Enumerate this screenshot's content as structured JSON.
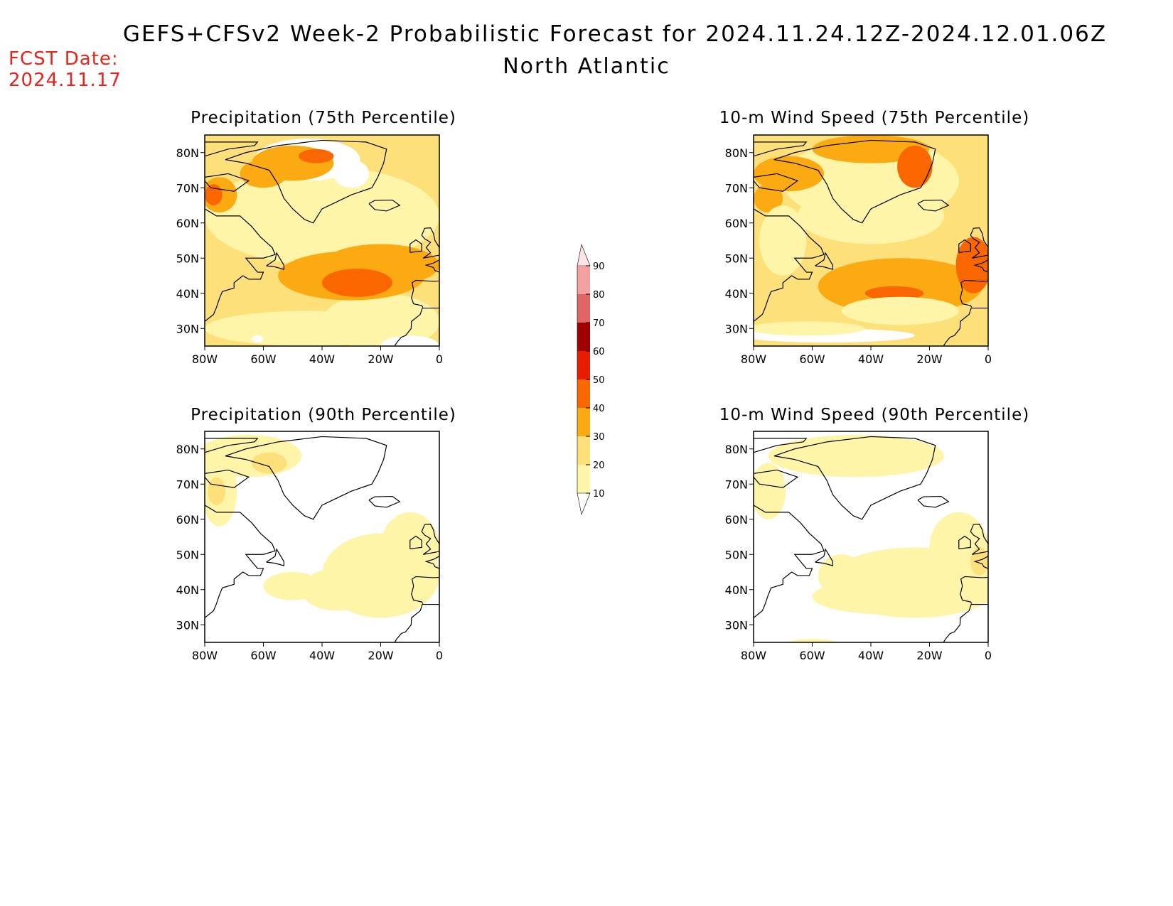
{
  "header": {
    "title": "GEFS+CFSv2 Week-2 Probabilistic Forecast for 2024.11.24.12Z-2024.12.01.06Z",
    "region": "North Atlantic",
    "fcst_label": "FCST Date:",
    "fcst_date": "2024.11.17"
  },
  "colors": {
    "bins": [
      "#ffffff",
      "#fef5a8",
      "#fde07a",
      "#fcaa11",
      "#fa6600",
      "#e81c00",
      "#a00000",
      "#e06666",
      "#f3a0a0",
      "#fde4e4"
    ],
    "coast": "#000000"
  },
  "legend": {
    "levels": [
      "10",
      "20",
      "30",
      "40",
      "50",
      "60",
      "70",
      "80",
      "90"
    ]
  },
  "axes": {
    "lat_labels": [
      "80N",
      "70N",
      "60N",
      "50N",
      "40N",
      "30N"
    ],
    "lon_labels": [
      "80W",
      "60W",
      "40W",
      "20W",
      "0"
    ]
  },
  "panels": [
    {
      "id": "precip75",
      "title": "Precipitation (75th Percentile)",
      "kind": "p75"
    },
    {
      "id": "wind75",
      "title": "10-m Wind Speed (75th Percentile)",
      "kind": "w75"
    },
    {
      "id": "precip90",
      "title": "Precipitation (90th Percentile)",
      "kind": "p90"
    },
    {
      "id": "wind90",
      "title": "10-m Wind Speed (90th Percentile)",
      "kind": "w90"
    }
  ]
}
